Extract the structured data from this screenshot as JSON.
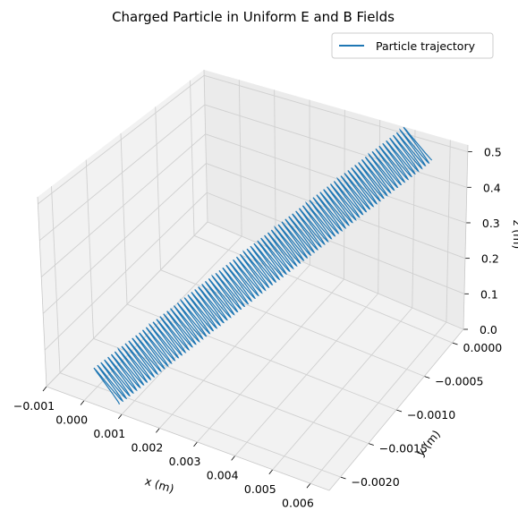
{
  "chart_data": {
    "type": "line",
    "projection": "3d",
    "title": "Charged Particle in Uniform E and B Fields",
    "xlabel": "x (m)",
    "ylabel": "y (m)",
    "zlabel": "z (m)",
    "xlim": [
      -0.001,
      0.0065
    ],
    "ylim": [
      -0.0022,
      0.0002
    ],
    "zlim": [
      0,
      0.5
    ],
    "x_ticks": [
      "−0.001",
      "0.000",
      "0.001",
      "0.002",
      "0.003",
      "0.004",
      "0.005",
      "0.006"
    ],
    "y_ticks": [
      "0.0000",
      "−0.0005",
      "−0.0010",
      "−0.0015",
      "−0.0020"
    ],
    "z_ticks": [
      "0.0",
      "0.1",
      "0.2",
      "0.3",
      "0.4",
      "0.5"
    ],
    "grid": true,
    "legend": {
      "position": "top-right",
      "entries": [
        "Particle trajectory"
      ]
    },
    "series": [
      {
        "name": "Particle trajectory",
        "color": "#1f77b4",
        "description": "helix drifting in +x with gyration in y, rising in z",
        "x_range": [
          -0.001,
          0.006
        ],
        "y_range": [
          -0.002,
          0.0
        ],
        "z_range": [
          0.0,
          0.5
        ],
        "turns": 90
      }
    ]
  }
}
